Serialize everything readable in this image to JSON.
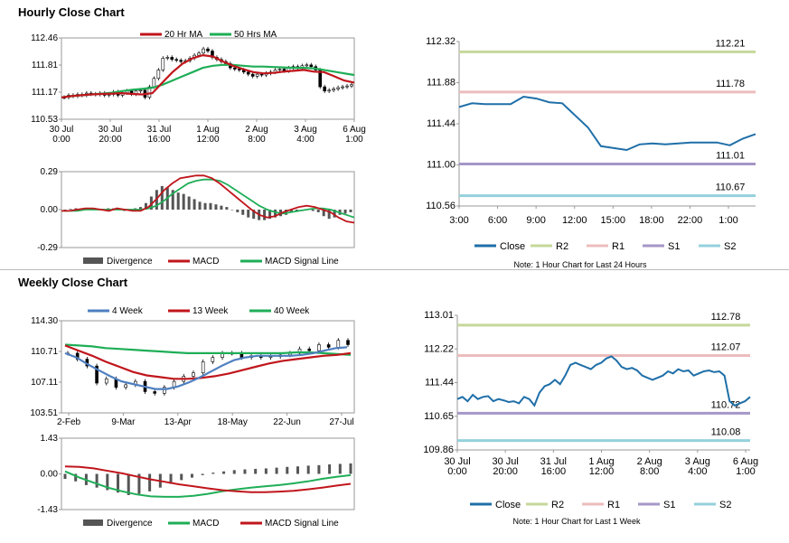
{
  "titles": {
    "hourly": "Hourly Close Chart",
    "weekly": "Weekly Close Chart"
  },
  "colors": {
    "ma_short": "#c0161c",
    "ma_long": "#1fae57",
    "blue": "#4f7fc0",
    "close": "#1f6fa8",
    "r2": "#c6d89a",
    "r1": "#ecbcbc",
    "s1": "#a597c7",
    "s2": "#94d1dc",
    "divergence": "#555555"
  },
  "chart_data": [
    {
      "id": "hourly_price",
      "type": "line",
      "title": "",
      "ylim": [
        110.53,
        112.46
      ],
      "yticks": [
        "112.46",
        "111.81",
        "111.17",
        "110.53"
      ],
      "xticks": [
        "30 Jul\n0:00",
        "30 Jul\n20:00",
        "31 Jul\n16:00",
        "1 Aug\n12:00",
        "2 Aug\n8:00",
        "3 Aug\n4:00",
        "6 Aug\n1:00"
      ],
      "legend": [
        "20 Hr MA",
        "50 Hrs MA"
      ],
      "candles": [
        111.05,
        111.1,
        111.08,
        111.12,
        111.1,
        111.15,
        111.13,
        111.12,
        111.15,
        111.1,
        111.12,
        111.18,
        111.1,
        111.16,
        111.2,
        111.13,
        111.2,
        111.22,
        111.05,
        111.3,
        111.5,
        111.7,
        111.98,
        112.0,
        111.95,
        111.93,
        111.9,
        111.92,
        111.98,
        112.05,
        112.1,
        112.2,
        112.15,
        112.0,
        111.95,
        111.9,
        111.85,
        111.75,
        111.72,
        111.7,
        111.65,
        111.6,
        111.55,
        111.6,
        111.58,
        111.62,
        111.65,
        111.7,
        111.72,
        111.68,
        111.75,
        111.78,
        111.74,
        111.8,
        111.82,
        111.78,
        111.7,
        111.3,
        111.2,
        111.22,
        111.25,
        111.28,
        111.3,
        111.32,
        111.35
      ],
      "series": [
        {
          "name": "20 Hr MA",
          "values": [
            111.05,
            111.08,
            111.1,
            111.12,
            111.13,
            111.14,
            111.15,
            111.13,
            111.12,
            111.15,
            111.4,
            111.65,
            111.85,
            111.98,
            112.05,
            112.02,
            111.9,
            111.8,
            111.72,
            111.65,
            111.62,
            111.63,
            111.66,
            111.68,
            111.7,
            111.66,
            111.65,
            111.55,
            111.45,
            111.4
          ]
        },
        {
          "name": "50 Hrs MA",
          "values": [
            111.05,
            111.08,
            111.1,
            111.12,
            111.14,
            111.16,
            111.2,
            111.23,
            111.25,
            111.28,
            111.35,
            111.45,
            111.55,
            111.65,
            111.75,
            111.8,
            111.82,
            111.82,
            111.8,
            111.78,
            111.78,
            111.77,
            111.76,
            111.75,
            111.75,
            111.74,
            111.7,
            111.66,
            111.62,
            111.58
          ]
        }
      ]
    },
    {
      "id": "hourly_macd",
      "type": "bar",
      "ylim": [
        -0.29,
        0.29
      ],
      "yticks": [
        "0.29",
        "0.00",
        "-0.29"
      ],
      "legend": [
        "Divergence",
        "MACD",
        "MACD Signal Line"
      ],
      "divergence": [
        0,
        0.005,
        0.01,
        0.01,
        0.005,
        0.005,
        0,
        0.005,
        0.01,
        0.01,
        0,
        -0.01,
        0,
        0.01,
        0.02,
        0.05,
        0.1,
        0.15,
        0.18,
        0.17,
        0.15,
        0.13,
        0.12,
        0.1,
        0.08,
        0.06,
        0.05,
        0.05,
        0.04,
        0.03,
        0.02,
        0,
        -0.02,
        -0.04,
        -0.06,
        -0.07,
        -0.08,
        -0.08,
        -0.07,
        -0.06,
        -0.05,
        -0.04,
        -0.02,
        -0.01,
        0,
        0,
        -0.01,
        -0.02,
        -0.05,
        -0.07,
        -0.06,
        -0.04,
        -0.03,
        -0.02
      ],
      "series": [
        {
          "name": "MACD",
          "values": [
            -0.01,
            -0.01,
            0,
            0.01,
            0.01,
            0,
            -0.01,
            0.01,
            0,
            -0.01,
            -0.01,
            0.02,
            0.08,
            0.15,
            0.2,
            0.24,
            0.25,
            0.26,
            0.26,
            0.24,
            0.2,
            0.15,
            0.1,
            0.05,
            0,
            -0.04,
            -0.06,
            -0.05,
            -0.02,
            0,
            0.02,
            0.03,
            0.02,
            0,
            -0.02,
            -0.06,
            -0.09,
            -0.1
          ]
        },
        {
          "name": "MACD Signal Line",
          "values": [
            -0.01,
            -0.01,
            -0.01,
            0,
            0,
            0,
            0,
            0,
            0,
            0,
            0,
            0.01,
            0.03,
            0.07,
            0.12,
            0.16,
            0.2,
            0.22,
            0.23,
            0.23,
            0.22,
            0.19,
            0.15,
            0.11,
            0.07,
            0.03,
            0,
            -0.02,
            -0.03,
            -0.02,
            -0.01,
            0,
            0.01,
            0.01,
            0,
            -0.02,
            -0.04,
            -0.06
          ]
        }
      ]
    },
    {
      "id": "hourly_levels",
      "type": "line",
      "ylim": [
        110.56,
        112.32
      ],
      "yticks": [
        "112.32",
        "111.88",
        "111.44",
        "111.00",
        "110.56"
      ],
      "xticks": [
        "3:00",
        "6:00",
        "9:00",
        "12:00",
        "15:00",
        "18:00",
        "22:00",
        "1:00"
      ],
      "levels": [
        {
          "name": "R2",
          "value": 112.21,
          "label": "112.21"
        },
        {
          "name": "R1",
          "value": 111.78,
          "label": "111.78"
        },
        {
          "name": "S1",
          "value": 111.01,
          "label": "111.01"
        },
        {
          "name": "S2",
          "value": 110.67,
          "label": "110.67"
        }
      ],
      "series": [
        {
          "name": "Close",
          "values": [
            111.62,
            111.66,
            111.65,
            111.65,
            111.65,
            111.73,
            111.71,
            111.67,
            111.66,
            111.53,
            111.4,
            111.2,
            111.18,
            111.16,
            111.22,
            111.23,
            111.22,
            111.23,
            111.24,
            111.24,
            111.24,
            111.21,
            111.28,
            111.33
          ]
        }
      ],
      "legend": [
        "Close",
        "R2",
        "R1",
        "S1",
        "S2"
      ],
      "note": "Note: 1 Hour Chart for Last 24 Hours"
    },
    {
      "id": "weekly_price",
      "type": "line",
      "ylim": [
        103.51,
        114.3
      ],
      "yticks": [
        "114.30",
        "110.71",
        "107.11",
        "103.51"
      ],
      "xticks": [
        "2-Feb",
        "9-Mar",
        "13-Apr",
        "18-May",
        "22-Jun",
        "27-Jul"
      ],
      "legend": [
        "4 Week",
        "13 Week",
        "40 Week"
      ],
      "candles": [
        110.5,
        109.8,
        109.0,
        107.0,
        107.5,
        106.5,
        106.8,
        107.2,
        106.0,
        105.8,
        106.5,
        107.2,
        107.8,
        108.2,
        109.5,
        110.0,
        110.5,
        110.5,
        110.0,
        110.2,
        110.0,
        110.1,
        110.3,
        110.5,
        111.0,
        110.8,
        111.5,
        111.2,
        112.0,
        111.5
      ],
      "series": [
        {
          "name": "4 Week",
          "values": [
            110.5,
            110.0,
            109.2,
            108.5,
            107.8,
            107.2,
            106.9,
            106.6,
            106.3,
            106.3,
            106.6,
            107.1,
            107.7,
            108.4,
            109.1,
            109.7,
            110.0,
            110.2,
            110.2,
            110.2,
            110.2,
            110.3,
            110.5,
            110.8,
            111.1,
            111.2
          ]
        },
        {
          "name": "13 Week",
          "values": [
            111.4,
            110.8,
            110.2,
            109.5,
            108.9,
            108.3,
            107.9,
            107.7,
            107.5,
            107.5,
            107.6,
            107.8,
            108.1,
            108.5,
            108.9,
            109.3,
            109.6,
            109.8,
            110.0,
            110.2,
            110.3,
            110.5
          ]
        },
        {
          "name": "40 Week",
          "values": [
            111.5,
            111.4,
            111.3,
            111.1,
            111.0,
            110.9,
            110.8,
            110.7,
            110.6,
            110.5,
            110.5,
            110.5,
            110.5,
            110.5,
            110.5,
            110.5,
            110.5,
            110.6,
            110.6,
            110.5,
            110.4,
            110.3
          ]
        }
      ]
    },
    {
      "id": "weekly_macd",
      "type": "bar",
      "ylim": [
        -1.43,
        1.43
      ],
      "yticks": [
        "1.43",
        "0.00",
        "-1.43"
      ],
      "legend": [
        "Divergence",
        "MACD",
        "MACD Signal Line"
      ],
      "divergence": [
        -0.2,
        -0.3,
        -0.45,
        -0.55,
        -0.65,
        -0.75,
        -0.85,
        -0.8,
        -0.7,
        -0.55,
        -0.4,
        -0.25,
        -0.15,
        -0.05,
        0.05,
        0.1,
        0.15,
        0.18,
        0.2,
        0.22,
        0.25,
        0.28,
        0.3,
        0.33,
        0.35,
        0.38,
        0.4,
        0.42
      ],
      "series": [
        {
          "name": "MACD",
          "values": [
            0.1,
            -0.15,
            -0.35,
            -0.55,
            -0.7,
            -0.82,
            -0.9,
            -0.92,
            -0.92,
            -0.88,
            -0.8,
            -0.7,
            -0.62,
            -0.55,
            -0.5,
            -0.45,
            -0.38,
            -0.3,
            -0.2,
            -0.12,
            -0.05
          ]
        },
        {
          "name": "MACD Signal Line",
          "values": [
            0.3,
            0.28,
            0.22,
            0.12,
            0.02,
            -0.1,
            -0.22,
            -0.32,
            -0.42,
            -0.5,
            -0.58,
            -0.65,
            -0.7,
            -0.73,
            -0.73,
            -0.71,
            -0.68,
            -0.62,
            -0.55,
            -0.47,
            -0.4
          ]
        }
      ]
    },
    {
      "id": "weekly_levels",
      "type": "line",
      "ylim": [
        109.86,
        113.01
      ],
      "yticks": [
        "113.01",
        "112.22",
        "111.44",
        "110.65",
        "109.86"
      ],
      "xticks": [
        "30 Jul\n0:00",
        "30 Jul\n20:00",
        "31 Jul\n16:00",
        "1 Aug\n12:00",
        "2 Aug\n8:00",
        "3 Aug\n4:00",
        "6 Aug\n1:00"
      ],
      "levels": [
        {
          "name": "R2",
          "value": 112.78,
          "label": "112.78"
        },
        {
          "name": "R1",
          "value": 112.07,
          "label": "112.07"
        },
        {
          "name": "S1",
          "value": 110.72,
          "label": "110.72"
        },
        {
          "name": "S2",
          "value": 110.08,
          "label": "110.08"
        }
      ],
      "series": [
        {
          "name": "Close",
          "values": [
            111.05,
            111.1,
            111.0,
            111.15,
            111.05,
            111.1,
            111.12,
            111.0,
            111.05,
            111.02,
            110.98,
            111.0,
            110.95,
            111.1,
            111.05,
            110.9,
            111.2,
            111.35,
            111.4,
            111.5,
            111.4,
            111.6,
            111.85,
            111.9,
            111.85,
            111.8,
            111.75,
            111.85,
            111.9,
            112.0,
            112.05,
            111.95,
            111.8,
            111.75,
            111.78,
            111.72,
            111.6,
            111.55,
            111.5,
            111.55,
            111.6,
            111.7,
            111.65,
            111.75,
            111.7,
            111.72,
            111.6,
            111.65,
            111.7,
            111.72,
            111.68,
            111.7,
            111.6,
            111.0,
            110.9,
            110.95,
            111.0,
            111.1
          ]
        }
      ],
      "legend": [
        "Close",
        "R2",
        "R1",
        "S1",
        "S2"
      ],
      "note": "Note: 1 Hour Chart for Last 1 Week"
    }
  ]
}
